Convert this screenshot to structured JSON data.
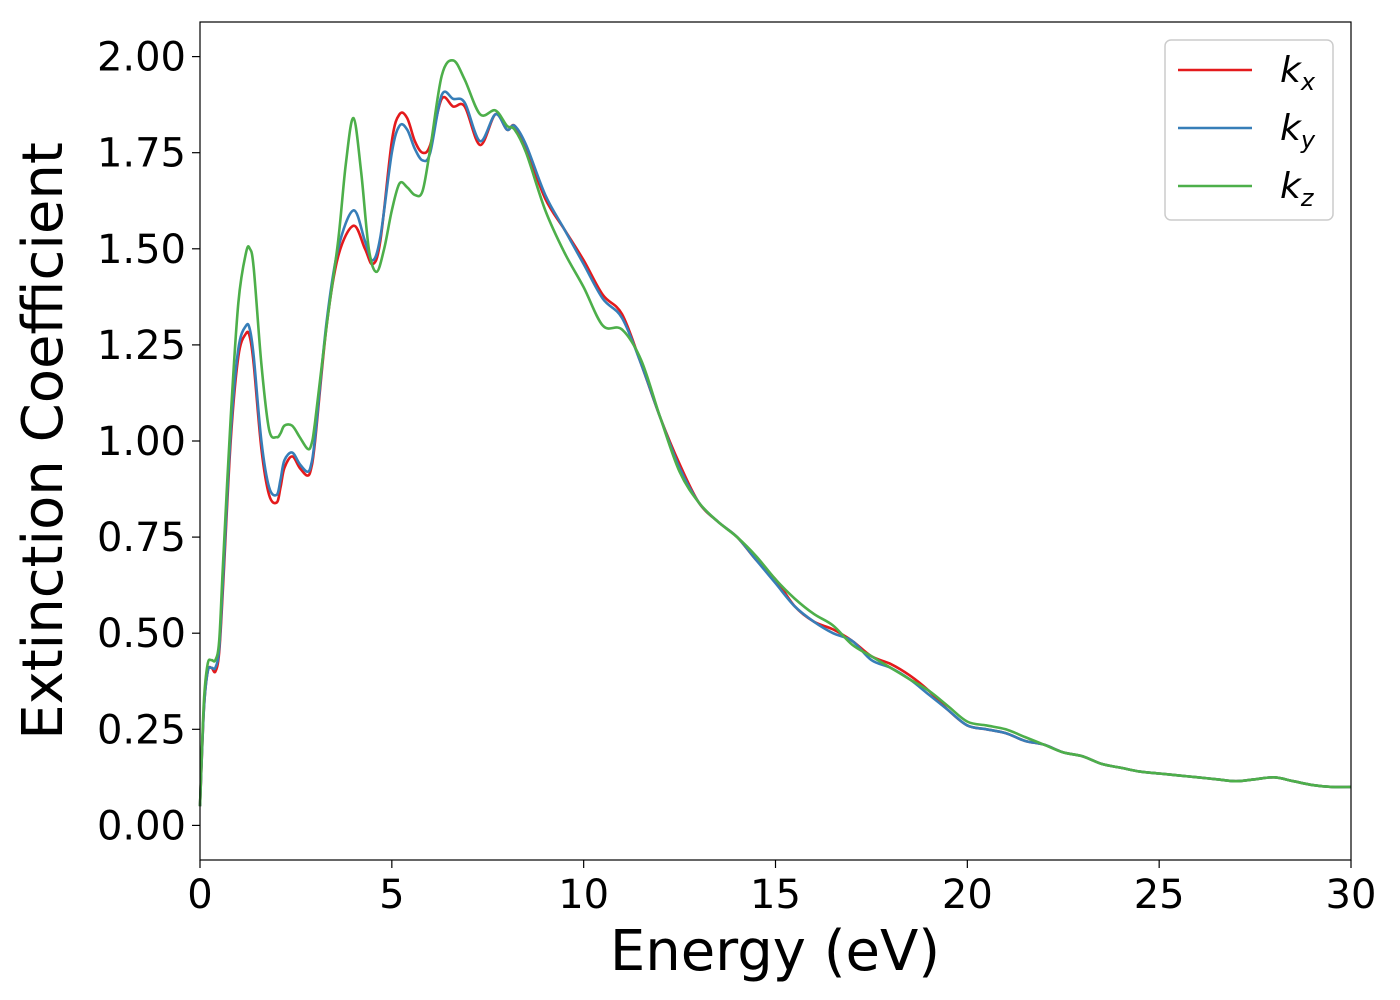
{
  "chart_data": {
    "type": "line",
    "xlabel": "Energy (eV)",
    "ylabel": "Extinction Coefficient",
    "xlim": [
      0,
      30
    ],
    "ylim": [
      -0.09,
      2.09
    ],
    "xticks": [
      0,
      5,
      10,
      15,
      20,
      25,
      30
    ],
    "xtick_labels": [
      "0",
      "5",
      "10",
      "15",
      "20",
      "25",
      "30"
    ],
    "yticks": [
      0.0,
      0.25,
      0.5,
      0.75,
      1.0,
      1.25,
      1.5,
      1.75,
      2.0
    ],
    "ytick_labels": [
      "0.00",
      "0.25",
      "0.50",
      "0.75",
      "1.00",
      "1.25",
      "1.50",
      "1.75",
      "2.00"
    ],
    "grid": false,
    "legend_position": "top-right",
    "series": [
      {
        "name": "k",
        "subscript": "x",
        "color": "#e41a1c",
        "x": [
          0,
          0.1,
          0.2,
          0.3,
          0.4,
          0.5,
          0.6,
          0.8,
          1.0,
          1.2,
          1.3,
          1.4,
          1.6,
          1.8,
          2.0,
          2.1,
          2.2,
          2.4,
          2.6,
          2.8,
          2.9,
          3.0,
          3.3,
          3.6,
          4.0,
          4.3,
          4.5,
          4.7,
          5.0,
          5.2,
          5.4,
          5.6,
          5.8,
          6.0,
          6.3,
          6.6,
          6.9,
          7.3,
          7.7,
          8.0,
          8.2,
          8.5,
          9.0,
          9.5,
          10.0,
          10.5,
          11.0,
          11.5,
          12.0,
          12.5,
          13.0,
          13.5,
          14.0,
          14.5,
          15.0,
          15.5,
          16.0,
          16.5,
          17.0,
          17.5,
          18.0,
          18.5,
          19.0,
          19.5,
          20.0,
          20.5,
          21.0,
          21.5,
          22.0,
          22.5,
          23.0,
          23.5,
          24.0,
          24.5,
          25.0,
          25.5,
          26.0,
          26.5,
          27.0,
          27.5,
          28.0,
          28.5,
          29.0,
          29.5,
          30.0
        ],
        "values": [
          0.05,
          0.3,
          0.4,
          0.41,
          0.4,
          0.45,
          0.62,
          1.0,
          1.22,
          1.28,
          1.27,
          1.2,
          0.98,
          0.86,
          0.84,
          0.88,
          0.93,
          0.96,
          0.93,
          0.91,
          0.93,
          1.0,
          1.3,
          1.48,
          1.56,
          1.5,
          1.46,
          1.52,
          1.78,
          1.85,
          1.84,
          1.78,
          1.75,
          1.77,
          1.89,
          1.87,
          1.87,
          1.77,
          1.85,
          1.81,
          1.82,
          1.76,
          1.63,
          1.55,
          1.47,
          1.38,
          1.33,
          1.2,
          1.06,
          0.94,
          0.84,
          0.79,
          0.75,
          0.69,
          0.64,
          0.57,
          0.53,
          0.51,
          0.48,
          0.44,
          0.42,
          0.39,
          0.35,
          0.3,
          0.26,
          0.25,
          0.24,
          0.22,
          0.21,
          0.19,
          0.18,
          0.16,
          0.15,
          0.14,
          0.135,
          0.13,
          0.125,
          0.12,
          0.115,
          0.12,
          0.125,
          0.115,
          0.105,
          0.1,
          0.1
        ]
      },
      {
        "name": "k",
        "subscript": "y",
        "color": "#377eb8",
        "x": [
          0,
          0.1,
          0.2,
          0.3,
          0.4,
          0.5,
          0.6,
          0.8,
          1.0,
          1.2,
          1.3,
          1.4,
          1.6,
          1.8,
          2.0,
          2.1,
          2.2,
          2.4,
          2.6,
          2.8,
          2.9,
          3.0,
          3.3,
          3.6,
          4.0,
          4.3,
          4.5,
          4.7,
          5.0,
          5.2,
          5.4,
          5.6,
          5.8,
          6.0,
          6.3,
          6.6,
          6.9,
          7.3,
          7.7,
          8.0,
          8.2,
          8.5,
          9.0,
          9.5,
          10.0,
          10.5,
          11.0,
          11.5,
          12.0,
          12.5,
          13.0,
          13.5,
          14.0,
          14.5,
          15.0,
          15.5,
          16.0,
          16.5,
          17.0,
          17.5,
          18.0,
          18.5,
          19.0,
          19.5,
          20.0,
          20.5,
          21.0,
          21.5,
          22.0,
          22.5,
          23.0,
          23.5,
          24.0,
          24.5,
          25.0,
          25.5,
          26.0,
          26.5,
          27.0,
          27.5,
          28.0,
          28.5,
          29.0,
          29.5,
          30.0
        ],
        "values": [
          0.05,
          0.3,
          0.4,
          0.41,
          0.41,
          0.46,
          0.64,
          1.02,
          1.24,
          1.3,
          1.29,
          1.22,
          1.0,
          0.88,
          0.86,
          0.9,
          0.95,
          0.97,
          0.94,
          0.92,
          0.94,
          1.01,
          1.31,
          1.5,
          1.6,
          1.52,
          1.47,
          1.53,
          1.75,
          1.82,
          1.81,
          1.76,
          1.73,
          1.75,
          1.9,
          1.89,
          1.88,
          1.78,
          1.85,
          1.81,
          1.82,
          1.77,
          1.64,
          1.55,
          1.46,
          1.37,
          1.32,
          1.2,
          1.06,
          0.93,
          0.84,
          0.79,
          0.75,
          0.69,
          0.63,
          0.57,
          0.53,
          0.5,
          0.48,
          0.43,
          0.41,
          0.38,
          0.34,
          0.3,
          0.26,
          0.25,
          0.24,
          0.22,
          0.21,
          0.19,
          0.18,
          0.16,
          0.15,
          0.14,
          0.135,
          0.13,
          0.125,
          0.12,
          0.115,
          0.12,
          0.125,
          0.115,
          0.105,
          0.1,
          0.1
        ]
      },
      {
        "name": "k",
        "subscript": "z",
        "color": "#4daf4a",
        "x": [
          0,
          0.1,
          0.2,
          0.3,
          0.4,
          0.5,
          0.6,
          0.8,
          1.0,
          1.2,
          1.3,
          1.4,
          1.6,
          1.8,
          2.0,
          2.1,
          2.2,
          2.4,
          2.6,
          2.8,
          2.9,
          3.0,
          3.3,
          3.6,
          3.8,
          4.0,
          4.2,
          4.4,
          4.6,
          4.8,
          5.0,
          5.2,
          5.4,
          5.6,
          5.8,
          6.0,
          6.3,
          6.6,
          6.9,
          7.3,
          7.7,
          8.0,
          8.2,
          8.5,
          9.0,
          9.5,
          10.0,
          10.5,
          11.0,
          11.5,
          12.0,
          12.5,
          13.0,
          13.5,
          14.0,
          14.5,
          15.0,
          15.5,
          16.0,
          16.5,
          17.0,
          17.5,
          18.0,
          18.5,
          19.0,
          19.5,
          20.0,
          20.5,
          21.0,
          21.5,
          22.0,
          22.5,
          23.0,
          23.5,
          24.0,
          24.5,
          25.0,
          25.5,
          26.0,
          26.5,
          27.0,
          27.5,
          28.0,
          28.5,
          29.0,
          29.5,
          30.0
        ],
        "values": [
          0.05,
          0.32,
          0.42,
          0.43,
          0.43,
          0.48,
          0.68,
          1.06,
          1.36,
          1.49,
          1.5,
          1.45,
          1.2,
          1.03,
          1.01,
          1.02,
          1.04,
          1.04,
          1.01,
          0.98,
          0.99,
          1.05,
          1.3,
          1.52,
          1.72,
          1.84,
          1.7,
          1.5,
          1.44,
          1.5,
          1.6,
          1.67,
          1.66,
          1.64,
          1.65,
          1.76,
          1.95,
          1.99,
          1.94,
          1.85,
          1.86,
          1.82,
          1.81,
          1.75,
          1.6,
          1.49,
          1.4,
          1.3,
          1.29,
          1.21,
          1.06,
          0.92,
          0.84,
          0.79,
          0.75,
          0.7,
          0.64,
          0.59,
          0.55,
          0.52,
          0.47,
          0.44,
          0.41,
          0.38,
          0.35,
          0.31,
          0.27,
          0.26,
          0.25,
          0.23,
          0.21,
          0.19,
          0.18,
          0.16,
          0.15,
          0.14,
          0.135,
          0.13,
          0.125,
          0.12,
          0.115,
          0.12,
          0.125,
          0.115,
          0.105,
          0.1,
          0.1
        ]
      }
    ]
  }
}
